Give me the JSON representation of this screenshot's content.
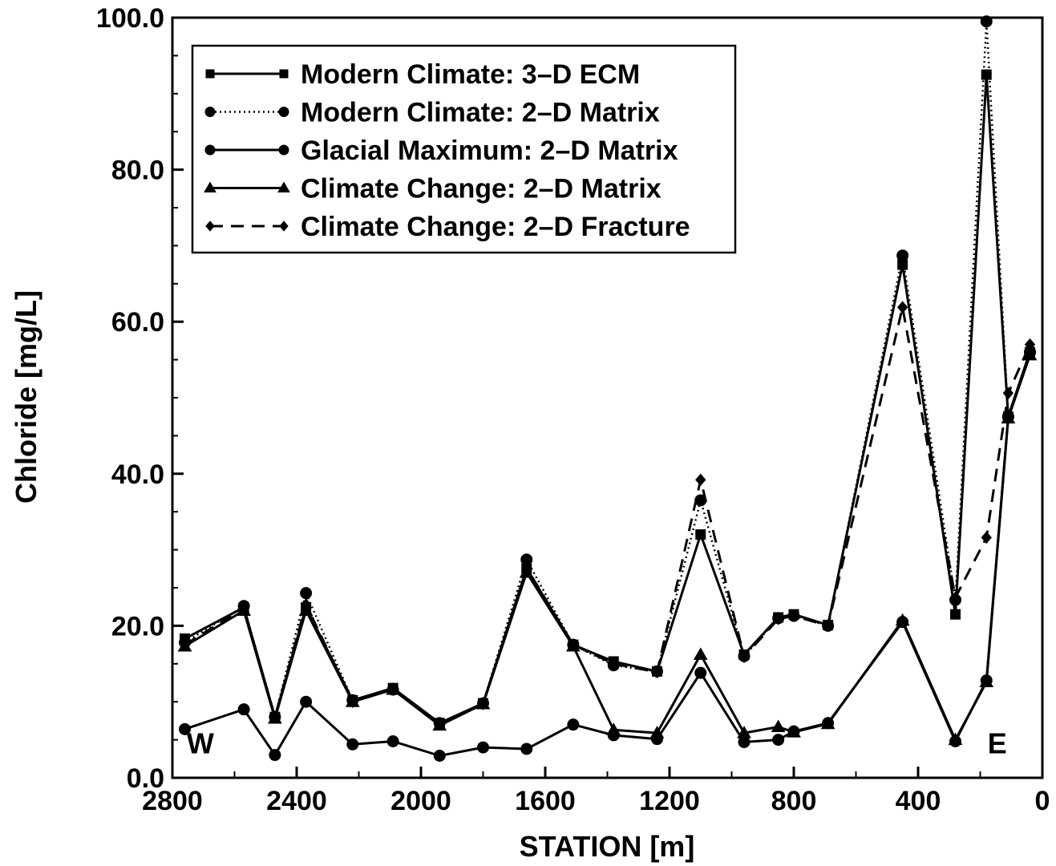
{
  "chart_data": {
    "type": "line",
    "title": "",
    "xlabel": "STATION [m]",
    "ylabel": "Chloride [mg/L]",
    "xlim": [
      2800,
      0
    ],
    "ylim": [
      0,
      100
    ],
    "x_reversed": true,
    "xticks": [
      2800,
      2400,
      2000,
      1600,
      1200,
      800,
      400,
      0
    ],
    "xtick_labels": [
      "2800",
      "2400",
      "2000",
      "1600",
      "1200",
      "800",
      "400",
      "0"
    ],
    "yticks": [
      0,
      20,
      40,
      60,
      80,
      100
    ],
    "ytick_labels": [
      "0.0",
      "20.0",
      "40.0",
      "60.0",
      "80.0",
      "100.0"
    ],
    "grid": false,
    "legend_position": "top-left",
    "annotations": [
      {
        "text": "W",
        "x": 2710,
        "y": 3.2
      },
      {
        "text": "E",
        "x": 145,
        "y": 3.2
      }
    ],
    "series": [
      {
        "name": "Modern Climate: 3–D ECM",
        "style": "solid",
        "marker": "square",
        "x": [
          2760,
          2570,
          2470,
          2370,
          2220,
          2090,
          1940,
          1800,
          1660,
          1510,
          1380,
          1240,
          1100,
          960,
          850,
          800,
          690,
          450,
          280,
          180,
          110,
          40
        ],
        "y": [
          18.3,
          22.4,
          8.0,
          22.4,
          10.2,
          11.8,
          7.2,
          9.8,
          27.5,
          17.5,
          15.3,
          14.0,
          32.0,
          16.2,
          21.1,
          21.5,
          20.1,
          67.5,
          21.5,
          92.5,
          47.5,
          56.0
        ]
      },
      {
        "name": "Modern Climate: 2–D Matrix",
        "style": "dotted",
        "marker": "circle",
        "x": [
          2760,
          2570,
          2470,
          2370,
          2220,
          2090,
          1940,
          1800,
          1660,
          1510,
          1380,
          1240,
          1100,
          960,
          850,
          800,
          690,
          450,
          280,
          180,
          110,
          40
        ],
        "y": [
          17.8,
          22.6,
          8.0,
          24.3,
          10.2,
          11.6,
          7.2,
          9.8,
          28.7,
          17.5,
          14.8,
          14.0,
          36.5,
          16.0,
          21.0,
          21.3,
          20.0,
          68.7,
          23.4,
          99.5,
          47.5,
          56.0
        ]
      },
      {
        "name": "Glacial Maximum: 2–D Matrix",
        "style": "solid",
        "marker": "circle",
        "x": [
          2760,
          2570,
          2470,
          2370,
          2220,
          2090,
          1940,
          1800,
          1660,
          1510,
          1380,
          1240,
          1100,
          960,
          850,
          800,
          690,
          450,
          280,
          180,
          110,
          40
        ],
        "y": [
          6.4,
          9.0,
          3.0,
          10.0,
          4.4,
          4.8,
          2.9,
          4.0,
          3.8,
          7.0,
          5.6,
          5.1,
          13.8,
          4.7,
          5.0,
          6.1,
          7.2,
          20.5,
          4.8,
          12.8,
          47.5,
          56.0
        ]
      },
      {
        "name": "Climate Change: 2–D Matrix",
        "style": "solid",
        "marker": "triangle",
        "x": [
          2760,
          2570,
          2470,
          2370,
          2220,
          2090,
          1940,
          1800,
          1660,
          1510,
          1380,
          1240,
          1100,
          960,
          850,
          800,
          690,
          450,
          280,
          180,
          110,
          40
        ],
        "y": [
          17.3,
          22.0,
          7.8,
          22.0,
          10.0,
          11.6,
          6.9,
          9.7,
          27.0,
          17.3,
          6.3,
          5.9,
          16.2,
          5.9,
          6.7,
          6.0,
          7.1,
          20.7,
          5.0,
          12.6,
          47.3,
          55.6
        ]
      },
      {
        "name": "Climate Change: 2–D Fracture",
        "style": "dashed",
        "marker": "diamond",
        "x": [
          2760,
          2570,
          2470,
          2370,
          2220,
          2090,
          1940,
          1800,
          1660,
          1510,
          1380,
          1240,
          1100,
          960,
          850,
          800,
          690,
          450,
          280,
          180,
          110,
          40
        ],
        "y": [
          17.5,
          22.3,
          8.0,
          22.8,
          10.0,
          11.7,
          7.1,
          9.7,
          27.6,
          17.5,
          15.0,
          13.9,
          39.2,
          15.9,
          20.9,
          21.3,
          20.0,
          61.9,
          23.7,
          31.6,
          50.6,
          57.0
        ]
      }
    ]
  }
}
